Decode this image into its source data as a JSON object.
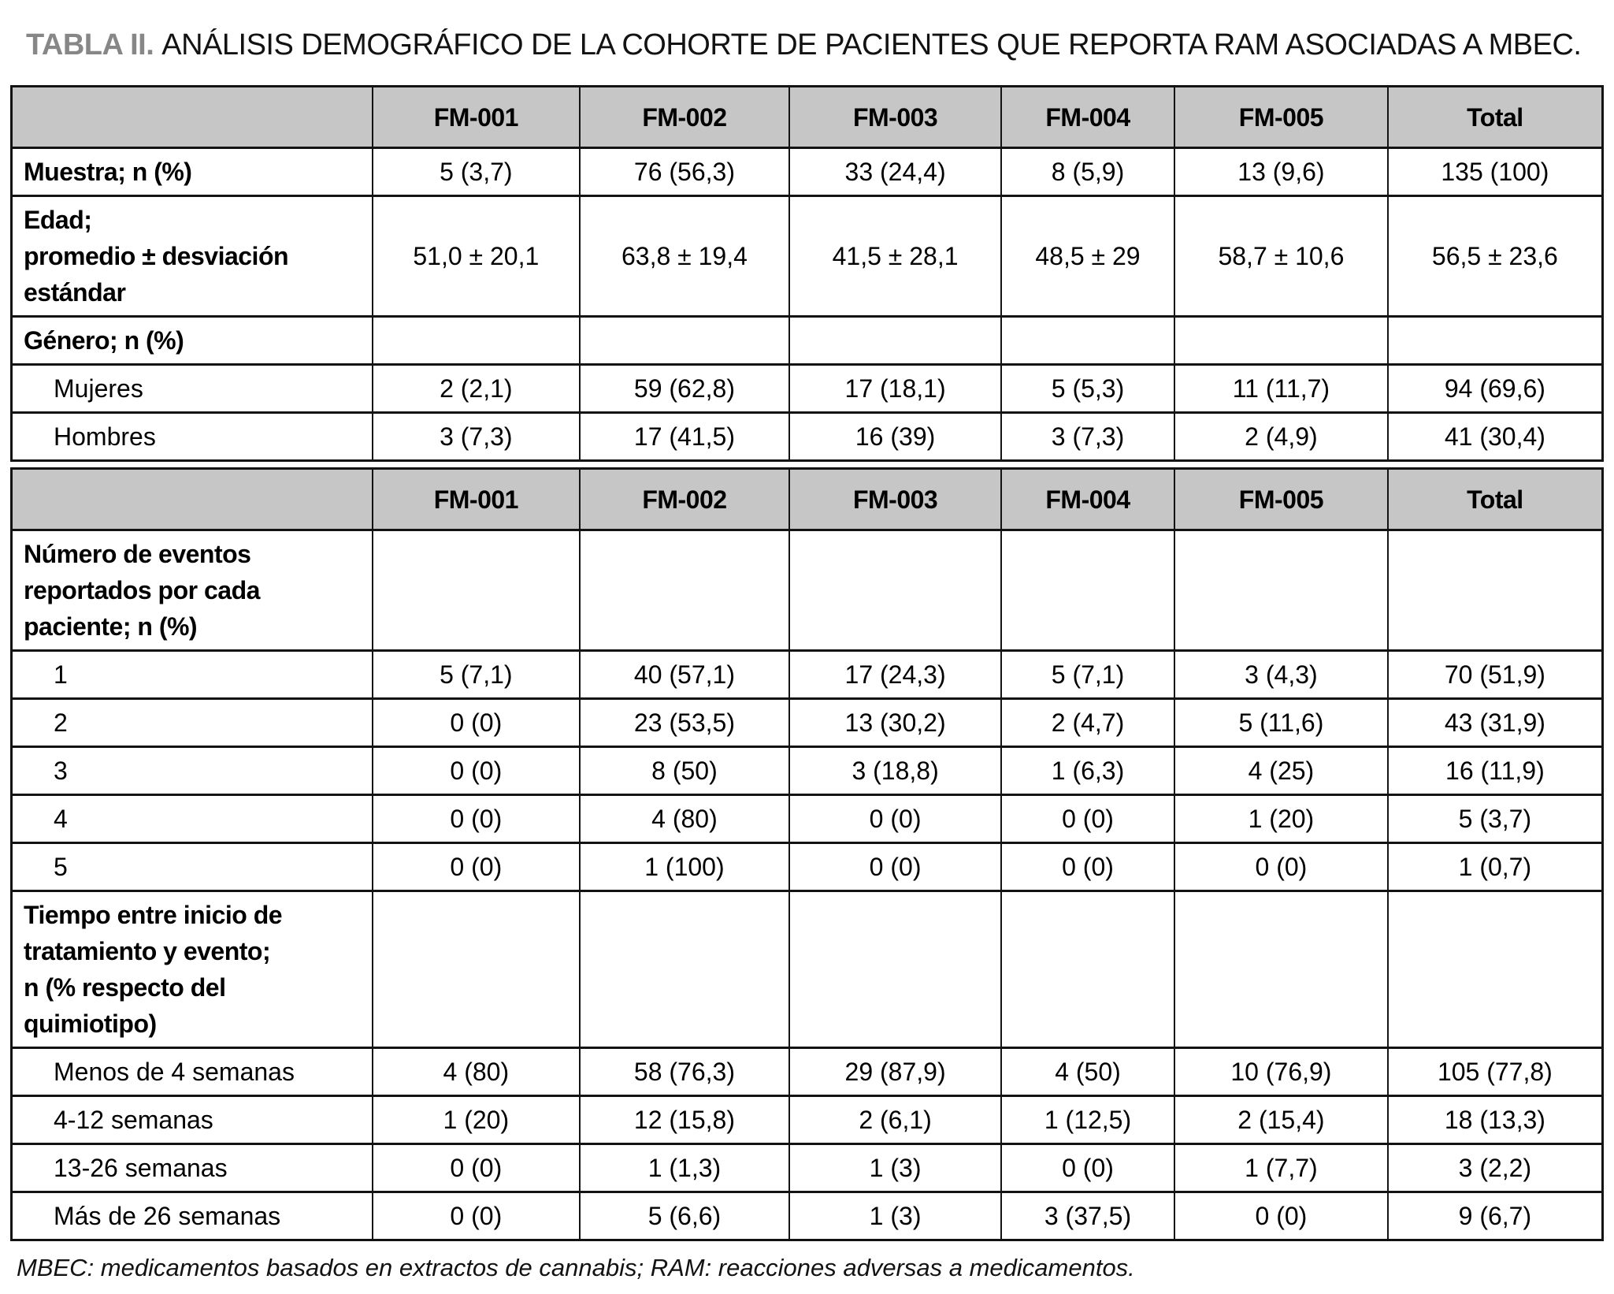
{
  "title": {
    "prefix": "TABLA II.",
    "text": "ANÁLISIS DEMOGRÁFICO DE LA COHORTE DE PACIENTES QUE REPORTA RAM ASOCIADAS A MBEC."
  },
  "column_headers": [
    "",
    "FM-001",
    "FM-002",
    "FM-003",
    "FM-004",
    "FM-005",
    "Total"
  ],
  "tables": {
    "t1": {
      "rows": [
        {
          "style": "section",
          "label": "Muestra; n (%)",
          "values": [
            "5 (3,7)",
            "76 (56,3)",
            "33 (24,4)",
            "8 (5,9)",
            "13 (9,6)",
            "135 (100)"
          ]
        },
        {
          "style": "section",
          "label": "Edad; promedio ± desviación estándar",
          "label_lines": [
            "Edad;",
            "promedio ± desviación",
            "estándar"
          ],
          "values": [
            "51,0 ± 20,1",
            "63,8 ± 19,4",
            "41,5 ± 28,1",
            "48,5 ± 29",
            "58,7 ± 10,6",
            "56,5 ± 23,6"
          ]
        },
        {
          "style": "section",
          "label": "Género; n (%)",
          "values": [
            "",
            "",
            "",
            "",
            "",
            ""
          ]
        },
        {
          "style": "item",
          "label": "Mujeres",
          "values": [
            "2 (2,1)",
            "59 (62,8)",
            "17 (18,1)",
            "5 (5,3)",
            "11 (11,7)",
            "94 (69,6)"
          ]
        },
        {
          "style": "item",
          "label": "Hombres",
          "values": [
            "3 (7,3)",
            "17 (41,5)",
            "16 (39)",
            "3 (7,3)",
            "2 (4,9)",
            "41 (30,4)"
          ]
        }
      ]
    },
    "t2": {
      "rows": [
        {
          "style": "section",
          "label": "Número de eventos reportados por cada paciente; n (%)",
          "label_lines": [
            "Número de eventos",
            "reportados por cada",
            "paciente; n (%)"
          ],
          "values": [
            "",
            "",
            "",
            "",
            "",
            ""
          ]
        },
        {
          "style": "item",
          "label": "1",
          "values": [
            "5 (7,1)",
            "40 (57,1)",
            "17 (24,3)",
            "5 (7,1)",
            "3 (4,3)",
            "70 (51,9)"
          ]
        },
        {
          "style": "item",
          "label": "2",
          "values": [
            "0 (0)",
            "23 (53,5)",
            "13 (30,2)",
            "2 (4,7)",
            "5 (11,6)",
            "43 (31,9)"
          ]
        },
        {
          "style": "item",
          "label": "3",
          "values": [
            "0 (0)",
            "8 (50)",
            "3 (18,8)",
            "1 (6,3)",
            "4 (25)",
            "16 (11,9)"
          ]
        },
        {
          "style": "item",
          "label": "4",
          "values": [
            "0 (0)",
            "4 (80)",
            "0 (0)",
            "0 (0)",
            "1 (20)",
            "5 (3,7)"
          ]
        },
        {
          "style": "item",
          "label": "5",
          "values": [
            "0 (0)",
            "1 (100)",
            "0 (0)",
            "0 (0)",
            "0 (0)",
            "1 (0,7)"
          ]
        },
        {
          "style": "section",
          "label": "Tiempo entre inicio de tratamiento y evento; n (% respecto del quimiotipo)",
          "label_lines": [
            "Tiempo entre inicio de",
            "tratamiento y evento;",
            "n (% respecto del",
            "quimiotipo)"
          ],
          "values": [
            "",
            "",
            "",
            "",
            "",
            ""
          ]
        },
        {
          "style": "item",
          "label": "Menos de 4 semanas",
          "values": [
            "4 (80)",
            "58 (76,3)",
            "29 (87,9)",
            "4 (50)",
            "10 (76,9)",
            "105 (77,8)"
          ]
        },
        {
          "style": "item",
          "label": "4-12 semanas",
          "values": [
            "1 (20)",
            "12 (15,8)",
            "2 (6,1)",
            "1 (12,5)",
            "2 (15,4)",
            "18 (13,3)"
          ]
        },
        {
          "style": "item",
          "label": "13-26 semanas",
          "values": [
            "0 (0)",
            "1 (1,3)",
            "1 (3)",
            "0 (0)",
            "1 (7,7)",
            "3 (2,2)"
          ]
        },
        {
          "style": "item",
          "label": "Más de 26 semanas",
          "values": [
            "0 (0)",
            "5 (6,6)",
            "1 (3)",
            "3 (37,5)",
            "0 (0)",
            "9 (6,7)"
          ]
        }
      ]
    }
  },
  "footnote": "MBEC: medicamentos basados en extractos de cannabis; RAM: reacciones adversas a medicamentos."
}
